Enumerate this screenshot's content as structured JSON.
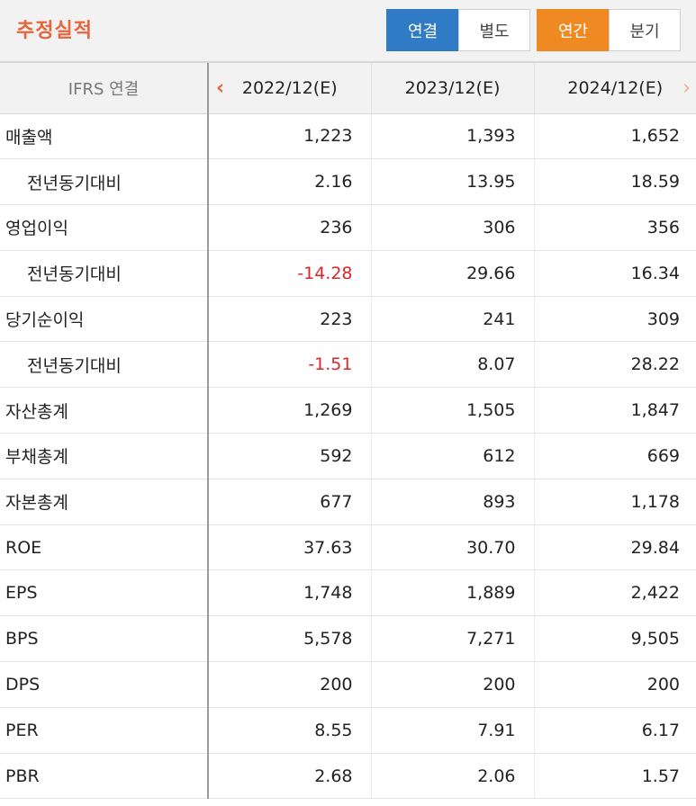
{
  "header": {
    "title": "추정실적",
    "consolidation_toggle": [
      {
        "label": "연결",
        "active": true
      },
      {
        "label": "별도",
        "active": false
      }
    ],
    "period_toggle": [
      {
        "label": "연간",
        "active": true
      },
      {
        "label": "분기",
        "active": false
      }
    ]
  },
  "colors": {
    "title": "#e8653b",
    "active_blue": "#2f7bc6",
    "active_orange": "#ef8a22",
    "negative": "#d6272b"
  },
  "table": {
    "label_header": "IFRS 연결",
    "columns": [
      "2022/12(E)",
      "2023/12(E)",
      "2024/12(E)"
    ],
    "prev_icon": "chevron-left-icon",
    "next_icon": "chevron-right-icon",
    "rows": [
      {
        "label": "매출액",
        "sub": false,
        "values": [
          "1,223",
          "1,393",
          "1,652"
        ]
      },
      {
        "label": "전년동기대비",
        "sub": true,
        "values": [
          "2.16",
          "13.95",
          "18.59"
        ]
      },
      {
        "label": "영업이익",
        "sub": false,
        "values": [
          "236",
          "306",
          "356"
        ]
      },
      {
        "label": "전년동기대비",
        "sub": true,
        "values": [
          "-14.28",
          "29.66",
          "16.34"
        ]
      },
      {
        "label": "당기순이익",
        "sub": false,
        "values": [
          "223",
          "241",
          "309"
        ]
      },
      {
        "label": "전년동기대비",
        "sub": true,
        "values": [
          "-1.51",
          "8.07",
          "28.22"
        ]
      },
      {
        "label": "자산총계",
        "sub": false,
        "values": [
          "1,269",
          "1,505",
          "1,847"
        ]
      },
      {
        "label": "부채총계",
        "sub": false,
        "values": [
          "592",
          "612",
          "669"
        ]
      },
      {
        "label": "자본총계",
        "sub": false,
        "values": [
          "677",
          "893",
          "1,178"
        ]
      },
      {
        "label": "ROE",
        "sub": false,
        "values": [
          "37.63",
          "30.70",
          "29.84"
        ]
      },
      {
        "label": "EPS",
        "sub": false,
        "values": [
          "1,748",
          "1,889",
          "2,422"
        ]
      },
      {
        "label": "BPS",
        "sub": false,
        "values": [
          "5,578",
          "7,271",
          "9,505"
        ]
      },
      {
        "label": "DPS",
        "sub": false,
        "values": [
          "200",
          "200",
          "200"
        ]
      },
      {
        "label": "PER",
        "sub": false,
        "values": [
          "8.55",
          "7.91",
          "6.17"
        ]
      },
      {
        "label": "PBR",
        "sub": false,
        "values": [
          "2.68",
          "2.06",
          "1.57"
        ]
      }
    ]
  }
}
